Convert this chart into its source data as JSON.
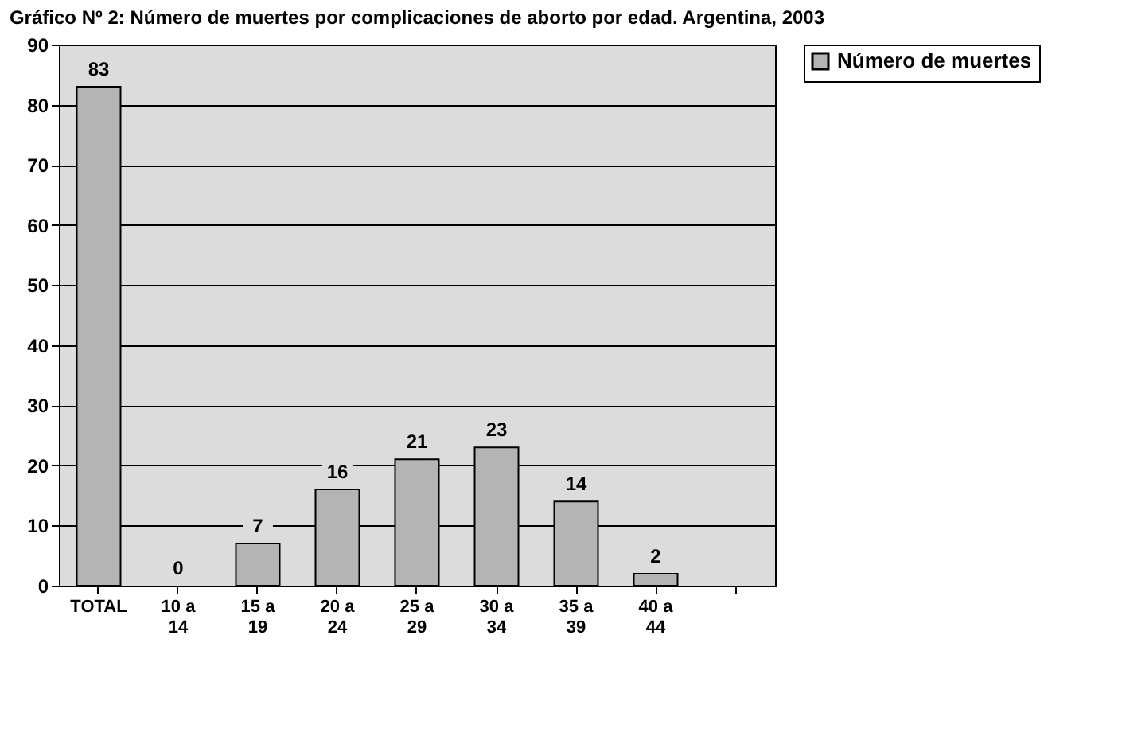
{
  "chart_data": {
    "type": "bar",
    "title": "Gráfico Nº 2: Número de muertes por complicaciones de aborto por edad. Argentina, 2003",
    "categories": [
      "TOTAL",
      "10 a 14",
      "15 a 19",
      "20 a 24",
      "25 a 29",
      "30 a 34",
      "35 a 39",
      "40 a 44",
      null
    ],
    "series": [
      {
        "name": "Número de muertes",
        "color": "#b4b4b4",
        "values": [
          83,
          0,
          7,
          16,
          21,
          23,
          14,
          2,
          null
        ]
      }
    ],
    "ylim": [
      0,
      90
    ],
    "yticks": [
      0,
      10,
      20,
      30,
      40,
      50,
      60,
      70,
      80,
      90
    ],
    "grid": "y",
    "legend": "right",
    "data_labels": true
  }
}
